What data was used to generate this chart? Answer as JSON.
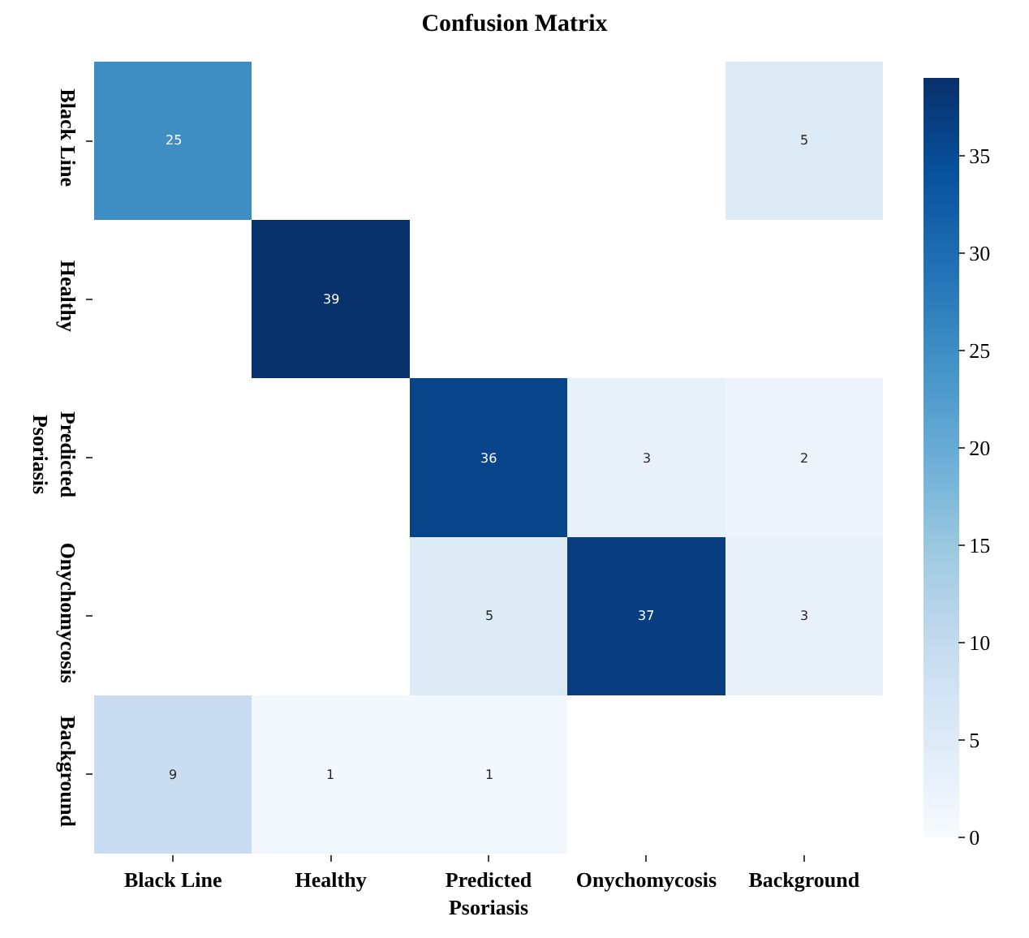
{
  "chart_data": {
    "type": "heatmap",
    "title": "Confusion Matrix",
    "categories": [
      "Black Line",
      "Healthy",
      "Predicted\nPsoriasis",
      "Onychomycosis",
      "Background"
    ],
    "y_categories": [
      "Black Line",
      "Healthy",
      "Predicted\nPsoriasis",
      "Onychomycosis",
      "Background"
    ],
    "cells": [
      [
        25,
        null,
        null,
        null,
        5
      ],
      [
        null,
        39,
        null,
        null,
        null
      ],
      [
        null,
        null,
        36,
        3,
        2
      ],
      [
        null,
        null,
        5,
        37,
        3
      ],
      [
        9,
        1,
        1,
        null,
        null
      ]
    ],
    "clim": [
      0,
      39
    ],
    "cticks": [
      0,
      5,
      10,
      15,
      20,
      25,
      30,
      35
    ],
    "data_labels": true
  }
}
